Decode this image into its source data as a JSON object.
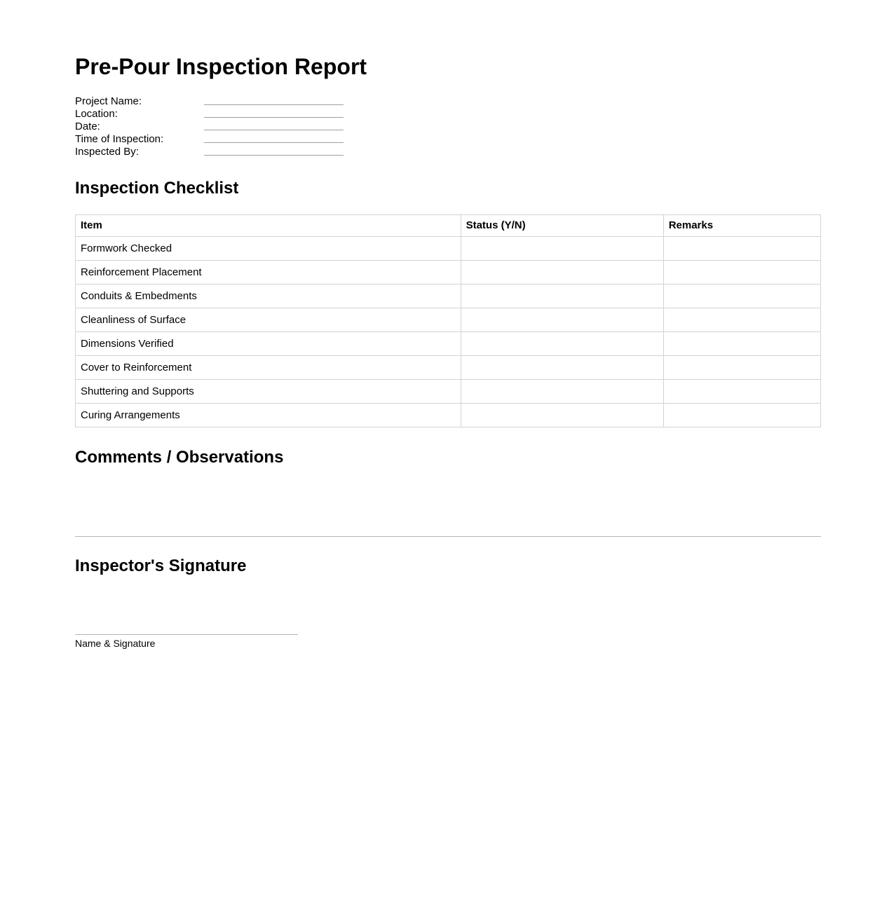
{
  "header": {
    "title": "Pre-Pour Inspection Report"
  },
  "form": {
    "fields": [
      {
        "label": "Project Name:",
        "value": ""
      },
      {
        "label": "Location:",
        "value": ""
      },
      {
        "label": "Date:",
        "value": ""
      },
      {
        "label": "Time of Inspection:",
        "value": ""
      },
      {
        "label": "Inspected By:",
        "value": ""
      }
    ]
  },
  "checklist": {
    "heading": "Inspection Checklist",
    "headers": [
      "Item",
      "Status (Y/N)",
      "Remarks"
    ],
    "rows": [
      {
        "item": "Formwork Checked",
        "status": "",
        "remarks": ""
      },
      {
        "item": "Reinforcement Placement",
        "status": "",
        "remarks": ""
      },
      {
        "item": "Conduits & Embedments",
        "status": "",
        "remarks": ""
      },
      {
        "item": "Cleanliness of Surface",
        "status": "",
        "remarks": ""
      },
      {
        "item": "Dimensions Verified",
        "status": "",
        "remarks": ""
      },
      {
        "item": "Cover to Reinforcement",
        "status": "",
        "remarks": ""
      },
      {
        "item": "Shuttering and Supports",
        "status": "",
        "remarks": ""
      },
      {
        "item": "Curing Arrangements",
        "status": "",
        "remarks": ""
      }
    ]
  },
  "comments": {
    "heading": "Comments / Observations",
    "text": ""
  },
  "signature": {
    "heading": "Inspector's Signature",
    "caption": "Name & Signature"
  },
  "colors": {
    "background": "#ffffff",
    "text": "#000000",
    "table_border": "#d2d2d2",
    "field_line": "#9f9f9f",
    "divider": "#b4b4b4"
  }
}
